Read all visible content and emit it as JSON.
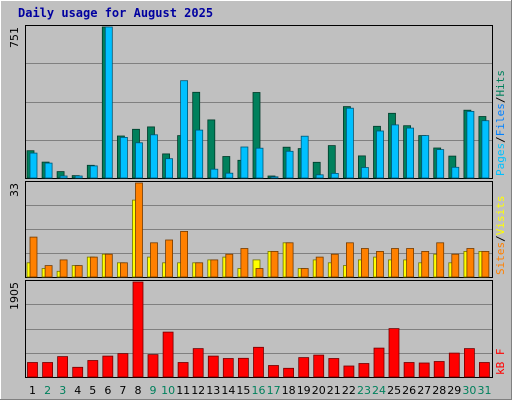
{
  "title": "Daily usage for August 2025",
  "chart_data": [
    {
      "type": "bar",
      "panel": "pages-files-hits",
      "ymax_label": "751",
      "ylim": [
        0,
        751
      ],
      "legend": {
        "pages": "Pages",
        "files": "Files",
        "hits": "Hits",
        "sep": "/"
      },
      "series": [
        {
          "name": "Hits",
          "color": "#00805c",
          "values": [
            136,
            79,
            32,
            12,
            63,
            751,
            209,
            242,
            254,
            120,
            211,
            426,
            289,
            107,
            88,
            425,
            10,
            153,
            146,
            78,
            161,
            355,
            110,
            257,
            322,
            260,
            211,
            149,
            109,
            337,
            306
          ]
        },
        {
          "name": "Files",
          "color": "#00c0ff",
          "values": [
            124,
            74,
            10,
            10,
            60,
            751,
            202,
            175,
            215,
            96,
            484,
            238,
            44,
            24,
            154,
            148,
            6,
            133,
            208,
            16,
            23,
            347,
            52,
            234,
            264,
            248,
            211,
            141,
            53,
            331,
            285
          ]
        }
      ]
    },
    {
      "type": "bar",
      "panel": "visits-sites",
      "ymax_label": "33",
      "ylim": [
        0,
        33
      ],
      "legend": {
        "sites": "Sites",
        "visits": "Visits",
        "sep": "/"
      },
      "series": [
        {
          "name": "Visits",
          "color": "#ffff00",
          "values": [
            5,
            3,
            2,
            4,
            7,
            8,
            5,
            27,
            7,
            5,
            5,
            5,
            6,
            7,
            3,
            6,
            9,
            12,
            3,
            6,
            5,
            4,
            6,
            7,
            6,
            6,
            5,
            8,
            5,
            9,
            9
          ]
        },
        {
          "name": "Sites",
          "color": "#ff8000",
          "values": [
            14,
            4,
            6,
            4,
            7,
            8,
            5,
            33,
            12,
            13,
            16,
            5,
            6,
            8,
            10,
            3,
            9,
            12,
            3,
            7,
            8,
            12,
            10,
            9,
            10,
            10,
            9,
            12,
            8,
            10,
            9
          ]
        }
      ]
    },
    {
      "type": "bar",
      "panel": "kb",
      "ymax_label": "1905",
      "ylim": [
        0,
        1905
      ],
      "legend": {
        "kb": "kB F"
      },
      "series": [
        {
          "name": "kB F",
          "color": "#ff0000",
          "values": [
            290,
            290,
            410,
            195,
            330,
            420,
            470,
            1905,
            450,
            900,
            290,
            570,
            420,
            370,
            375,
            595,
            230,
            175,
            390,
            440,
            370,
            220,
            270,
            580,
            970,
            290,
            280,
            310,
            480,
            570,
            290
          ]
        }
      ]
    }
  ],
  "x_axis": {
    "days": [
      "1",
      "2",
      "3",
      "4",
      "5",
      "6",
      "7",
      "8",
      "9",
      "10",
      "11",
      "12",
      "13",
      "14",
      "15",
      "16",
      "17",
      "18",
      "19",
      "20",
      "21",
      "22",
      "23",
      "24",
      "25",
      "26",
      "27",
      "28",
      "29",
      "30",
      "31"
    ],
    "weekend_days": [
      2,
      3,
      9,
      10,
      16,
      17,
      23,
      24,
      30,
      31
    ],
    "weekday_color": "#000000",
    "weekend_color": "#00805c"
  },
  "colors": {
    "background": "#c0c0c0",
    "plot_area": "#c0c0c0",
    "gridline": "#808080",
    "title": "#0000a0"
  }
}
